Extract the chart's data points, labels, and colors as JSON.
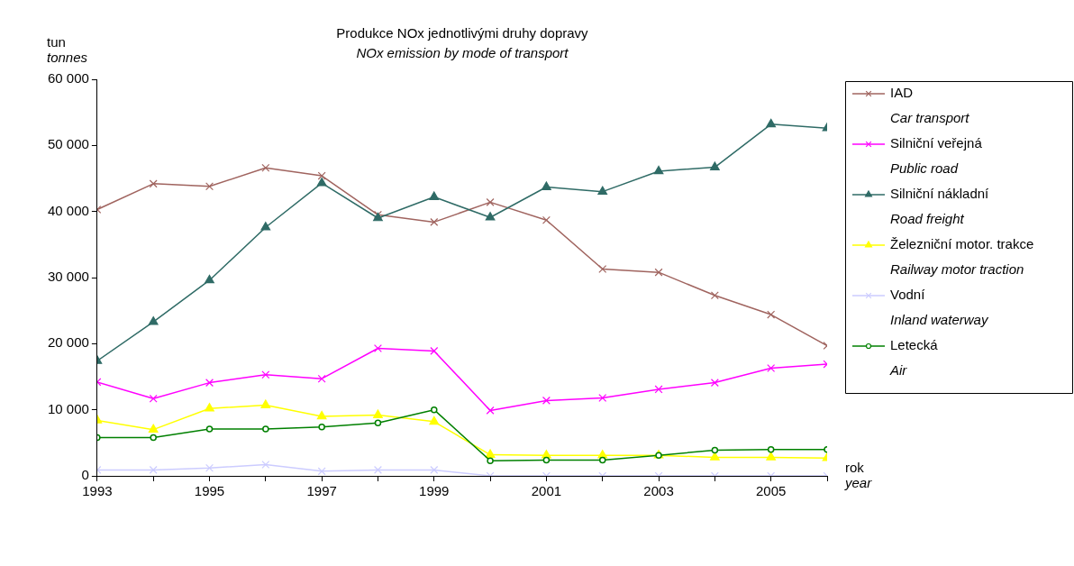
{
  "chart_data": {
    "type": "line",
    "title": "Produkce NOx jednotlivými druhy dopravy",
    "subtitle": "NOx emission by mode of transport",
    "ylabel": "tun\ntonnes",
    "xlabel": "rok\nyear",
    "x": [
      1993,
      1994,
      1995,
      1996,
      1997,
      1998,
      1999,
      2000,
      2001,
      2002,
      2003,
      2004,
      2005,
      2006
    ],
    "xlim": [
      1993,
      2006
    ],
    "xticks": [
      1993,
      {
        "value": 1994,
        "label": null
      },
      1995,
      {
        "value": 1996,
        "label": null
      },
      1997,
      {
        "value": 1998,
        "label": null
      },
      1999,
      {
        "value": 2000,
        "label": null
      },
      2001,
      {
        "value": 2002,
        "label": null
      },
      2003,
      {
        "value": 2004,
        "label": null
      },
      2005,
      {
        "value": 2006,
        "label": null
      }
    ],
    "ylim": [
      0,
      60000
    ],
    "yticks": [
      {
        "value": 0,
        "label": "0"
      },
      {
        "value": 10000,
        "label": "10 000"
      },
      {
        "value": 20000,
        "label": "20 000"
      },
      {
        "value": 30000,
        "label": "30 000"
      },
      {
        "value": 40000,
        "label": "40 000"
      },
      {
        "value": 50000,
        "label": "50 000"
      },
      {
        "value": 60000,
        "label": "60 000"
      }
    ],
    "grid": false,
    "legend": "right",
    "line_style": "solid",
    "series": [
      {
        "name": "IAD\nCar transport",
        "color": "#a0645f",
        "marker": "cross",
        "values": [
          40300,
          44200,
          43800,
          46600,
          45400,
          39500,
          38400,
          41400,
          38700,
          31300,
          30800,
          27300,
          24400,
          19700
        ]
      },
      {
        "name": "Silniční veřejná\nPublic road",
        "color": "#ff00ff",
        "marker": "cross",
        "values": [
          14200,
          11700,
          14100,
          15300,
          14700,
          19300,
          18900,
          9900,
          11400,
          11800,
          13100,
          14100,
          16300,
          16900
        ]
      },
      {
        "name": "Silniční nákladní\nRoad freight",
        "color": "#2f6b66",
        "marker": "triangle",
        "values": [
          17400,
          23300,
          29600,
          37600,
          44300,
          39000,
          42200,
          39100,
          43700,
          43000,
          46100,
          46700,
          53200,
          52600
        ]
      },
      {
        "name": "Železniční motor. trakce\nRailway motor traction",
        "color": "#ffff00",
        "marker": "triangle",
        "values": [
          8400,
          7000,
          10200,
          10700,
          9000,
          9200,
          8200,
          3200,
          3100,
          3100,
          3100,
          2800,
          2800,
          2700
        ]
      },
      {
        "name": "Vodní\nInland waterway",
        "color": "#ccccff",
        "marker": "cross",
        "values": [
          900,
          900,
          1200,
          1700,
          700,
          900,
          900,
          0,
          0,
          0,
          0,
          0,
          0,
          0
        ]
      },
      {
        "name": "Letecká\nAir",
        "color": "#008000",
        "marker": "circle",
        "values": [
          5800,
          5800,
          7100,
          7100,
          7400,
          8000,
          10000,
          2300,
          2400,
          2400,
          3100,
          3900,
          4000,
          4000
        ]
      }
    ]
  }
}
